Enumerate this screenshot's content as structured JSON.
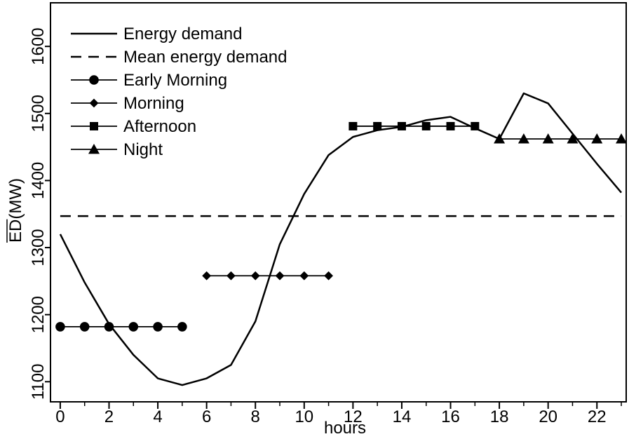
{
  "chart_data": {
    "type": "line",
    "xlabel": "hours",
    "ylabel": "ED(MW)",
    "ylabel_overline_part": "ED",
    "ylabel_units": "(MW)",
    "xlim": [
      -0.4,
      23.2
    ],
    "ylim": [
      1070,
      1665
    ],
    "x_ticks": [
      0,
      2,
      4,
      6,
      8,
      10,
      12,
      14,
      16,
      18,
      20,
      22
    ],
    "x_minor_ticks": [
      1,
      3,
      5,
      7,
      9,
      11,
      13,
      15,
      17,
      19,
      21,
      23
    ],
    "y_ticks": [
      1100,
      1200,
      1300,
      1400,
      1500,
      1600
    ],
    "grid": false,
    "legend_position": "top-left",
    "series": [
      {
        "name": "Energy demand",
        "style": "solid",
        "x": [
          0,
          1,
          2,
          3,
          4,
          5,
          6,
          7,
          8,
          9,
          10,
          11,
          12,
          13,
          14,
          15,
          16,
          17,
          18,
          19,
          20,
          21,
          22,
          23
        ],
        "y": [
          1320,
          1248,
          1186,
          1140,
          1105,
          1095,
          1105,
          1125,
          1190,
          1305,
          1380,
          1438,
          1465,
          1475,
          1480,
          1490,
          1495,
          1478,
          1462,
          1530,
          1515,
          1470,
          1425,
          1382
        ]
      },
      {
        "name": "Mean energy demand",
        "style": "dashed",
        "x": [
          0,
          23
        ],
        "y": [
          1347,
          1347
        ]
      },
      {
        "name": "Early Morning",
        "style": "solid",
        "marker": "circle",
        "x": [
          0,
          1,
          2,
          3,
          4,
          5
        ],
        "y": [
          1182,
          1182,
          1182,
          1182,
          1182,
          1182
        ]
      },
      {
        "name": "Morning",
        "style": "solid",
        "marker": "diamond",
        "x": [
          6,
          7,
          8,
          9,
          10,
          11
        ],
        "y": [
          1258,
          1258,
          1258,
          1258,
          1258,
          1258
        ]
      },
      {
        "name": "Afternoon",
        "style": "solid",
        "marker": "square",
        "x": [
          12,
          13,
          14,
          15,
          16,
          17
        ],
        "y": [
          1481,
          1481,
          1481,
          1481,
          1481,
          1481
        ]
      },
      {
        "name": "Night",
        "style": "solid",
        "marker": "triangle",
        "x": [
          18,
          19,
          20,
          21,
          22,
          23
        ],
        "y": [
          1462,
          1462,
          1462,
          1462,
          1462,
          1462
        ]
      }
    ]
  }
}
